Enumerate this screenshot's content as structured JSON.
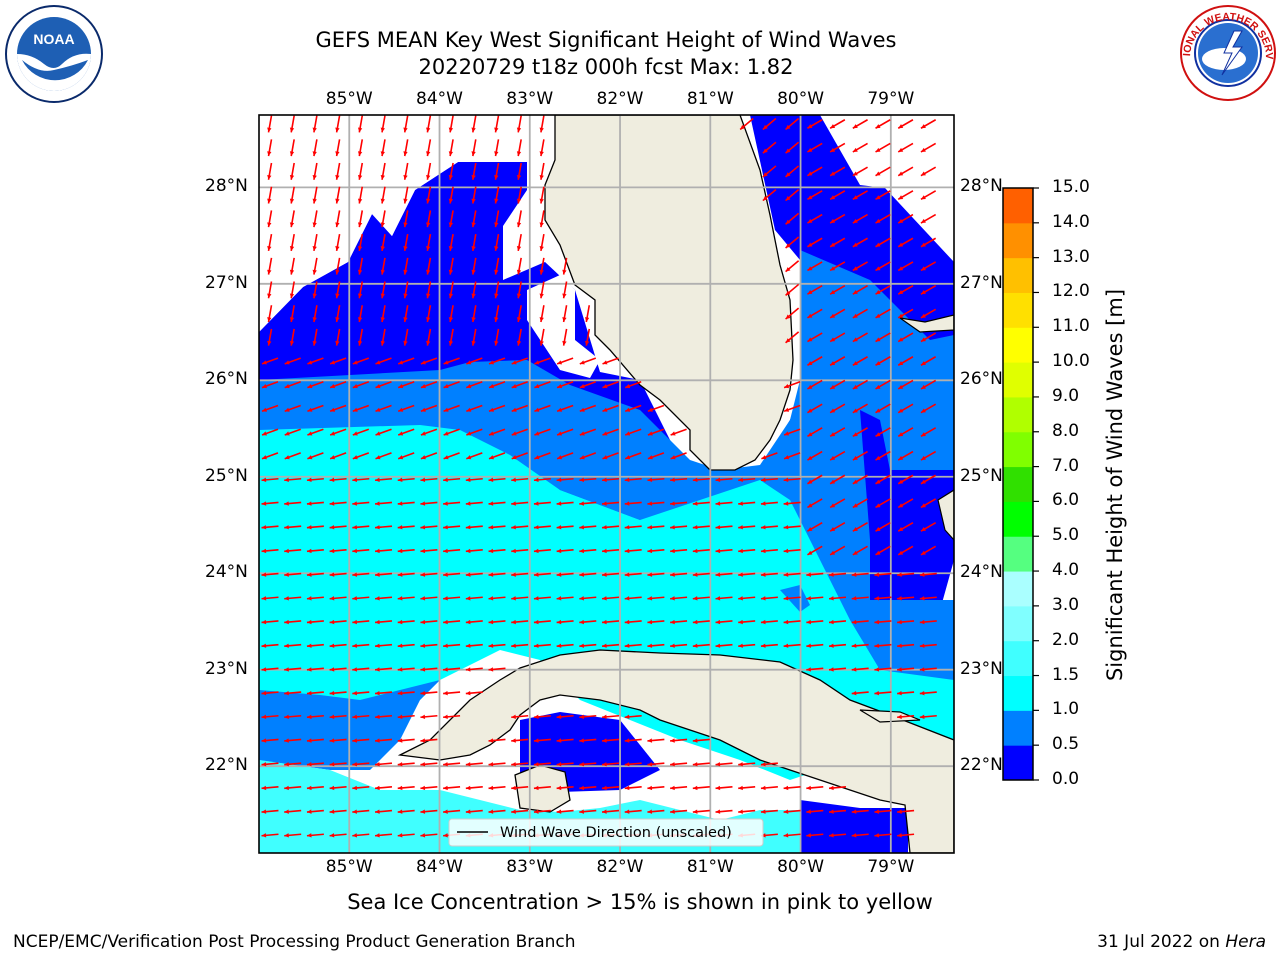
{
  "title": {
    "line1": "GEFS MEAN Key West Significant Height of Wind Waves",
    "line2": "20220729 t18z 000h fcst   Max: 1.82"
  },
  "axes": {
    "lon_ticks": [
      "85°W",
      "84°W",
      "83°W",
      "82°W",
      "81°W",
      "80°W",
      "79°W"
    ],
    "lat_ticks": [
      "28°N",
      "27°N",
      "26°N",
      "25°N",
      "24°N",
      "23°N",
      "22°N"
    ],
    "lon_range": [
      -86.0,
      -78.3
    ],
    "lat_range": [
      21.1,
      28.75
    ],
    "gridlines": true
  },
  "legend": {
    "label": "Wind Wave Direction (unscaled)",
    "location": "bottom-center"
  },
  "colorbar": {
    "label": "Significant Height of Wind Waves [m]",
    "ticks": [
      "15.0",
      "14.0",
      "13.0",
      "12.0",
      "11.0",
      "10.0",
      "9.0",
      "8.0",
      "7.0",
      "6.0",
      "5.0",
      "4.0",
      "3.0",
      "2.0",
      "1.5",
      "1.0",
      "0.5",
      "0.0"
    ],
    "colors": [
      "#0000ff",
      "#0080ff",
      "#00ffff",
      "#40ffff",
      "#80ffff",
      "#aaffff",
      "#55ff80",
      "#00ff00",
      "#30e000",
      "#80ff00",
      "#b0ff00",
      "#e0ff00",
      "#ffff00",
      "#ffe000",
      "#ffc000",
      "#ff9000",
      "#ff6000",
      "#ff3000",
      "#ff0000"
    ]
  },
  "notes": {
    "ice": "Sea Ice Concentration > 15% is shown in pink to yellow",
    "credit": "NCEP/EMC/Verification Post Processing Product Generation Branch",
    "date": "31 Jul 2022 on",
    "host": "Hera"
  },
  "logos": {
    "left": "noaa-logo",
    "right": "nws-logo",
    "left_text": "NOAA",
    "right_text": "NATIONAL WEATHER SERVICE"
  },
  "colors": {
    "land": "#efeddf",
    "arrow": "#ff0000",
    "grid": "#b0b0b0"
  }
}
